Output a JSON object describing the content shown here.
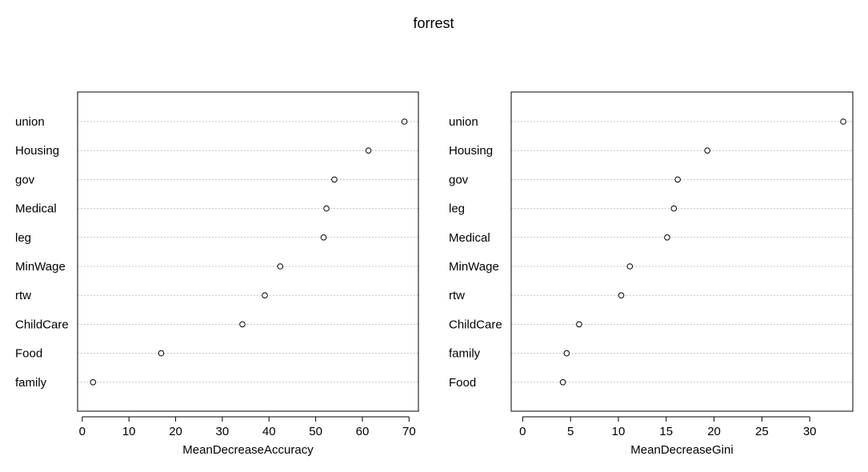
{
  "title": "forrest",
  "chart_data": [
    {
      "type": "scatter",
      "xlabel": "MeanDecreaseAccuracy",
      "ylabel": "",
      "xlim": [
        -1,
        72
      ],
      "xticks": [
        0,
        10,
        20,
        30,
        40,
        50,
        60,
        70
      ],
      "grid": "horizontal dotted",
      "categories": [
        "union",
        "Housing",
        "gov",
        "Medical",
        "leg",
        "MinWage",
        "rtw",
        "ChildCare",
        "Food",
        "family"
      ],
      "values": [
        69.0,
        61.3,
        54.0,
        52.3,
        51.7,
        42.4,
        39.1,
        34.3,
        16.9,
        2.3
      ]
    },
    {
      "type": "scatter",
      "xlabel": "MeanDecreaseGini",
      "ylabel": "",
      "xlim": [
        -1.2,
        34.5
      ],
      "xticks": [
        0,
        5,
        10,
        15,
        20,
        25,
        30
      ],
      "grid": "horizontal dotted",
      "categories": [
        "union",
        "Housing",
        "gov",
        "leg",
        "Medical",
        "MinWage",
        "rtw",
        "ChildCare",
        "family",
        "Food"
      ],
      "values": [
        33.5,
        19.3,
        16.2,
        15.8,
        15.1,
        11.2,
        10.3,
        5.9,
        4.6,
        4.2
      ]
    }
  ]
}
